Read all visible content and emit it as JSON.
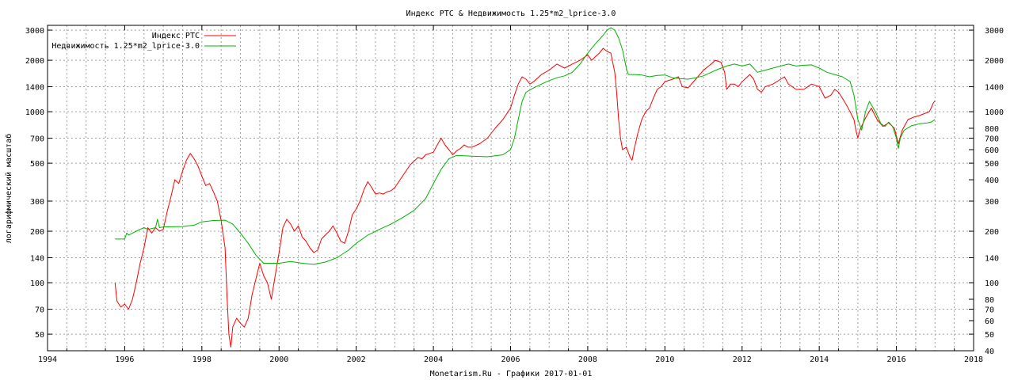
{
  "chart_data": {
    "type": "line",
    "title": "Индекс РТС & Недвижимость 1.25*m2_lprice-3.0",
    "xlabel": "Monetarism.Ru - Графики 2017-01-01",
    "ylabel": "логарифмический масштаб",
    "yscale": "log",
    "xlim": [
      1994,
      2018
    ],
    "ylim": [
      40,
      3200
    ],
    "x_ticks": [
      "1994",
      "1996",
      "1998",
      "2000",
      "2002",
      "2004",
      "2006",
      "2008",
      "2010",
      "2012",
      "2014",
      "2016",
      "2018"
    ],
    "y_ticks_left": [
      "50",
      "70",
      "100",
      "140",
      "200",
      "300",
      "500",
      "700",
      "1000",
      "1400",
      "2000",
      "3000"
    ],
    "y_ticks_right": [
      "40",
      "50",
      "60",
      "70",
      "80",
      "100",
      "140",
      "200",
      "300",
      "400",
      "500",
      "600",
      "700",
      "800",
      "1000",
      "1400",
      "2000",
      "3000"
    ],
    "grid": true,
    "legend_position": "top-left",
    "series": [
      {
        "name": "Индекс РТС",
        "color": "#ff0000",
        "points": [
          [
            1995.75,
            100
          ],
          [
            1995.8,
            78
          ],
          [
            1995.9,
            72
          ],
          [
            1996.0,
            75
          ],
          [
            1996.1,
            70
          ],
          [
            1996.2,
            80
          ],
          [
            1996.3,
            100
          ],
          [
            1996.4,
            130
          ],
          [
            1996.5,
            160
          ],
          [
            1996.6,
            210
          ],
          [
            1996.7,
            195
          ],
          [
            1996.8,
            210
          ],
          [
            1996.9,
            200
          ],
          [
            1997.0,
            205
          ],
          [
            1997.1,
            260
          ],
          [
            1997.2,
            320
          ],
          [
            1997.3,
            400
          ],
          [
            1997.4,
            380
          ],
          [
            1997.5,
            450
          ],
          [
            1997.6,
            520
          ],
          [
            1997.7,
            570
          ],
          [
            1997.8,
            530
          ],
          [
            1997.9,
            480
          ],
          [
            1998.0,
            420
          ],
          [
            1998.1,
            370
          ],
          [
            1998.2,
            380
          ],
          [
            1998.3,
            340
          ],
          [
            1998.4,
            300
          ],
          [
            1998.5,
            230
          ],
          [
            1998.6,
            160
          ],
          [
            1998.65,
            85
          ],
          [
            1998.7,
            50
          ],
          [
            1998.75,
            42
          ],
          [
            1998.8,
            55
          ],
          [
            1998.9,
            62
          ],
          [
            1999.0,
            58
          ],
          [
            1999.1,
            55
          ],
          [
            1999.2,
            62
          ],
          [
            1999.3,
            85
          ],
          [
            1999.4,
            105
          ],
          [
            1999.5,
            130
          ],
          [
            1999.6,
            110
          ],
          [
            1999.7,
            100
          ],
          [
            1999.8,
            80
          ],
          [
            1999.9,
            110
          ],
          [
            2000.0,
            150
          ],
          [
            2000.1,
            210
          ],
          [
            2000.2,
            235
          ],
          [
            2000.3,
            220
          ],
          [
            2000.4,
            200
          ],
          [
            2000.5,
            215
          ],
          [
            2000.6,
            185
          ],
          [
            2000.7,
            175
          ],
          [
            2000.8,
            160
          ],
          [
            2000.9,
            150
          ],
          [
            2001.0,
            155
          ],
          [
            2001.1,
            180
          ],
          [
            2001.2,
            190
          ],
          [
            2001.3,
            200
          ],
          [
            2001.4,
            215
          ],
          [
            2001.5,
            195
          ],
          [
            2001.6,
            175
          ],
          [
            2001.7,
            170
          ],
          [
            2001.8,
            200
          ],
          [
            2001.9,
            250
          ],
          [
            2002.0,
            270
          ],
          [
            2002.1,
            300
          ],
          [
            2002.2,
            350
          ],
          [
            2002.3,
            390
          ],
          [
            2002.4,
            360
          ],
          [
            2002.5,
            330
          ],
          [
            2002.6,
            335
          ],
          [
            2002.7,
            330
          ],
          [
            2002.8,
            340
          ],
          [
            2002.9,
            345
          ],
          [
            2003.0,
            360
          ],
          [
            2003.2,
            420
          ],
          [
            2003.4,
            490
          ],
          [
            2003.6,
            540
          ],
          [
            2003.7,
            530
          ],
          [
            2003.8,
            560
          ],
          [
            2003.9,
            570
          ],
          [
            2004.0,
            580
          ],
          [
            2004.1,
            640
          ],
          [
            2004.2,
            700
          ],
          [
            2004.3,
            640
          ],
          [
            2004.4,
            600
          ],
          [
            2004.5,
            560
          ],
          [
            2004.6,
            590
          ],
          [
            2004.7,
            610
          ],
          [
            2004.8,
            640
          ],
          [
            2004.9,
            620
          ],
          [
            2005.0,
            620
          ],
          [
            2005.2,
            650
          ],
          [
            2005.4,
            700
          ],
          [
            2005.6,
            800
          ],
          [
            2005.8,
            900
          ],
          [
            2006.0,
            1050
          ],
          [
            2006.1,
            1250
          ],
          [
            2006.2,
            1450
          ],
          [
            2006.3,
            1600
          ],
          [
            2006.4,
            1550
          ],
          [
            2006.5,
            1450
          ],
          [
            2006.6,
            1500
          ],
          [
            2006.8,
            1650
          ],
          [
            2007.0,
            1750
          ],
          [
            2007.2,
            1900
          ],
          [
            2007.4,
            1800
          ],
          [
            2007.6,
            1900
          ],
          [
            2007.8,
            2000
          ],
          [
            2008.0,
            2150
          ],
          [
            2008.1,
            2000
          ],
          [
            2008.2,
            2100
          ],
          [
            2008.3,
            2200
          ],
          [
            2008.4,
            2350
          ],
          [
            2008.5,
            2250
          ],
          [
            2008.6,
            2200
          ],
          [
            2008.7,
            1700
          ],
          [
            2008.75,
            1300
          ],
          [
            2008.8,
            900
          ],
          [
            2008.85,
            700
          ],
          [
            2008.9,
            600
          ],
          [
            2009.0,
            620
          ],
          [
            2009.1,
            540
          ],
          [
            2009.15,
            520
          ],
          [
            2009.2,
            600
          ],
          [
            2009.3,
            750
          ],
          [
            2009.4,
            900
          ],
          [
            2009.5,
            1000
          ],
          [
            2009.6,
            1050
          ],
          [
            2009.7,
            1200
          ],
          [
            2009.8,
            1350
          ],
          [
            2009.9,
            1400
          ],
          [
            2010.0,
            1500
          ],
          [
            2010.2,
            1550
          ],
          [
            2010.35,
            1600
          ],
          [
            2010.45,
            1400
          ],
          [
            2010.6,
            1380
          ],
          [
            2010.8,
            1550
          ],
          [
            2011.0,
            1750
          ],
          [
            2011.2,
            1900
          ],
          [
            2011.3,
            2000
          ],
          [
            2011.45,
            1950
          ],
          [
            2011.55,
            1700
          ],
          [
            2011.6,
            1350
          ],
          [
            2011.7,
            1450
          ],
          [
            2011.8,
            1450
          ],
          [
            2011.9,
            1400
          ],
          [
            2012.0,
            1500
          ],
          [
            2012.2,
            1650
          ],
          [
            2012.3,
            1550
          ],
          [
            2012.4,
            1350
          ],
          [
            2012.5,
            1300
          ],
          [
            2012.6,
            1400
          ],
          [
            2012.8,
            1450
          ],
          [
            2013.0,
            1550
          ],
          [
            2013.1,
            1600
          ],
          [
            2013.2,
            1450
          ],
          [
            2013.4,
            1350
          ],
          [
            2013.6,
            1350
          ],
          [
            2013.8,
            1450
          ],
          [
            2014.0,
            1400
          ],
          [
            2014.15,
            1200
          ],
          [
            2014.3,
            1250
          ],
          [
            2014.4,
            1350
          ],
          [
            2014.5,
            1300
          ],
          [
            2014.6,
            1200
          ],
          [
            2014.7,
            1100
          ],
          [
            2014.8,
            1000
          ],
          [
            2014.9,
            900
          ],
          [
            2014.95,
            780
          ],
          [
            2015.0,
            700
          ],
          [
            2015.05,
            780
          ],
          [
            2015.2,
            920
          ],
          [
            2015.35,
            1050
          ],
          [
            2015.5,
            900
          ],
          [
            2015.65,
            820
          ],
          [
            2015.8,
            860
          ],
          [
            2015.95,
            800
          ],
          [
            2016.05,
            650
          ],
          [
            2016.15,
            780
          ],
          [
            2016.3,
            900
          ],
          [
            2016.45,
            930
          ],
          [
            2016.6,
            950
          ],
          [
            2016.75,
            980
          ],
          [
            2016.85,
            1000
          ],
          [
            2016.9,
            1050
          ],
          [
            2016.95,
            1120
          ],
          [
            2017.0,
            1160
          ]
        ]
      },
      {
        "name": "Недвижимость 1.25*m2_lprice-3.0",
        "color": "#00b400",
        "points": [
          [
            1995.75,
            180
          ],
          [
            1996.0,
            180
          ],
          [
            1996.05,
            195
          ],
          [
            1996.1,
            190
          ],
          [
            1996.2,
            195
          ],
          [
            1996.3,
            200
          ],
          [
            1996.4,
            205
          ],
          [
            1996.5,
            210
          ],
          [
            1996.6,
            205
          ],
          [
            1996.8,
            210
          ],
          [
            1996.85,
            235
          ],
          [
            1996.9,
            210
          ],
          [
            1997.0,
            212
          ],
          [
            1997.5,
            213
          ],
          [
            1997.8,
            217
          ],
          [
            1998.0,
            227
          ],
          [
            1998.3,
            231
          ],
          [
            1998.6,
            232
          ],
          [
            1998.8,
            220
          ],
          [
            1999.0,
            195
          ],
          [
            1999.2,
            170
          ],
          [
            1999.4,
            145
          ],
          [
            1999.6,
            130
          ],
          [
            2000.0,
            130
          ],
          [
            2000.3,
            133
          ],
          [
            2000.6,
            130
          ],
          [
            2000.9,
            128
          ],
          [
            2001.2,
            132
          ],
          [
            2001.5,
            140
          ],
          [
            2001.8,
            155
          ],
          [
            2002.0,
            170
          ],
          [
            2002.3,
            190
          ],
          [
            2002.6,
            205
          ],
          [
            2002.9,
            220
          ],
          [
            2003.2,
            240
          ],
          [
            2003.5,
            265
          ],
          [
            2003.8,
            310
          ],
          [
            2004.0,
            380
          ],
          [
            2004.2,
            460
          ],
          [
            2004.4,
            530
          ],
          [
            2004.6,
            555
          ],
          [
            2005.0,
            550
          ],
          [
            2005.4,
            545
          ],
          [
            2005.8,
            560
          ],
          [
            2006.0,
            600
          ],
          [
            2006.1,
            700
          ],
          [
            2006.2,
            900
          ],
          [
            2006.3,
            1150
          ],
          [
            2006.4,
            1300
          ],
          [
            2006.6,
            1380
          ],
          [
            2006.8,
            1450
          ],
          [
            2007.0,
            1520
          ],
          [
            2007.2,
            1580
          ],
          [
            2007.4,
            1620
          ],
          [
            2007.6,
            1700
          ],
          [
            2007.8,
            1900
          ],
          [
            2008.0,
            2200
          ],
          [
            2008.2,
            2500
          ],
          [
            2008.4,
            2800
          ],
          [
            2008.5,
            3000
          ],
          [
            2008.6,
            3100
          ],
          [
            2008.7,
            3000
          ],
          [
            2008.8,
            2700
          ],
          [
            2008.9,
            2300
          ],
          [
            2009.0,
            1800
          ],
          [
            2009.05,
            1650
          ],
          [
            2009.2,
            1650
          ],
          [
            2009.4,
            1640
          ],
          [
            2009.6,
            1600
          ],
          [
            2009.8,
            1630
          ],
          [
            2010.0,
            1640
          ],
          [
            2010.2,
            1580
          ],
          [
            2010.4,
            1560
          ],
          [
            2010.6,
            1550
          ],
          [
            2010.8,
            1580
          ],
          [
            2011.0,
            1620
          ],
          [
            2011.2,
            1700
          ],
          [
            2011.4,
            1780
          ],
          [
            2011.6,
            1850
          ],
          [
            2011.8,
            1900
          ],
          [
            2012.0,
            1850
          ],
          [
            2012.2,
            1900
          ],
          [
            2012.4,
            1700
          ],
          [
            2012.6,
            1750
          ],
          [
            2012.8,
            1800
          ],
          [
            2013.0,
            1850
          ],
          [
            2013.2,
            1900
          ],
          [
            2013.4,
            1850
          ],
          [
            2013.6,
            1870
          ],
          [
            2013.8,
            1880
          ],
          [
            2014.0,
            1800
          ],
          [
            2014.2,
            1700
          ],
          [
            2014.4,
            1650
          ],
          [
            2014.6,
            1600
          ],
          [
            2014.8,
            1500
          ],
          [
            2014.9,
            1250
          ],
          [
            2015.0,
            900
          ],
          [
            2015.1,
            780
          ],
          [
            2015.2,
            1000
          ],
          [
            2015.3,
            1150
          ],
          [
            2015.4,
            1050
          ],
          [
            2015.5,
            950
          ],
          [
            2015.6,
            850
          ],
          [
            2015.7,
            820
          ],
          [
            2015.8,
            870
          ],
          [
            2015.9,
            820
          ],
          [
            2016.0,
            700
          ],
          [
            2016.05,
            610
          ],
          [
            2016.1,
            700
          ],
          [
            2016.2,
            780
          ],
          [
            2016.4,
            830
          ],
          [
            2016.6,
            850
          ],
          [
            2016.8,
            860
          ],
          [
            2016.9,
            870
          ],
          [
            2017.0,
            900
          ]
        ]
      }
    ]
  }
}
